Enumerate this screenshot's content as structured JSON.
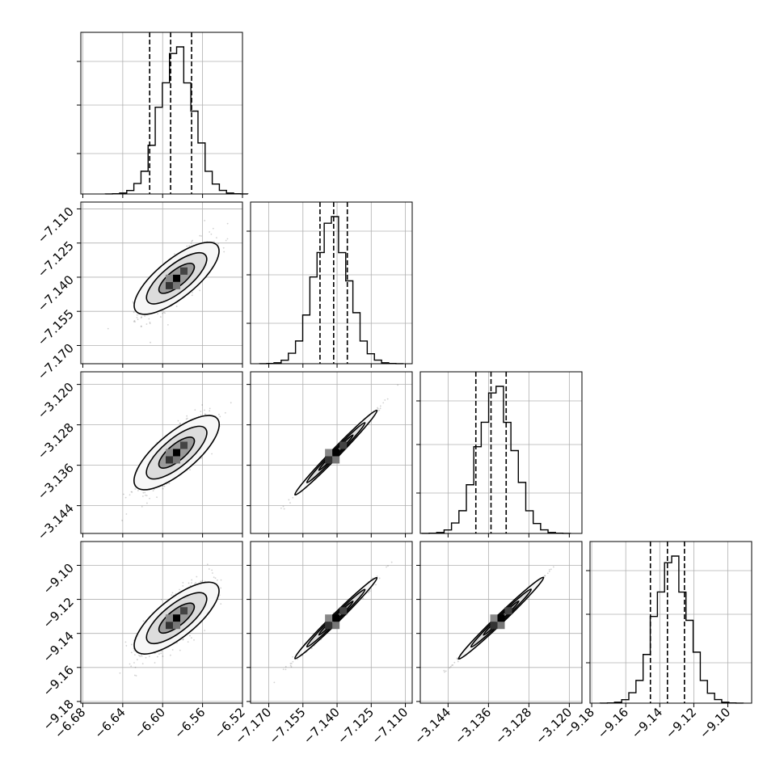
{
  "chart_data": {
    "type": "corner",
    "params": [
      {
        "ticks": [
          "−6.68",
          "−6.64",
          "−6.60",
          "−6.56",
          "−6.52"
        ],
        "tickvals": [
          -6.68,
          -6.64,
          -6.6,
          -6.56,
          -6.52
        ],
        "range": [
          -6.682,
          -6.52
        ],
        "quantiles": [
          -6.613,
          -6.592,
          -6.571
        ],
        "mode": -6.586,
        "sd": 0.017
      },
      {
        "ticks": [
          "−7.170",
          "−7.155",
          "−7.140",
          "−7.125",
          "−7.110"
        ],
        "tickvals": [
          -7.17,
          -7.155,
          -7.14,
          -7.125,
          -7.11
        ],
        "range": [
          -7.178,
          -7.107
        ],
        "quantiles": [
          -7.1475,
          -7.1415,
          -7.1355
        ],
        "mode": -7.1425,
        "sd": 0.0075
      },
      {
        "ticks": [
          "−3.144",
          "−3.136",
          "−3.128",
          "−3.120"
        ],
        "tickvals": [
          -3.144,
          -3.136,
          -3.128,
          -3.12
        ],
        "range": [
          -3.1495,
          -3.1175
        ],
        "quantiles": [
          -3.1385,
          -3.1355,
          -3.1325
        ],
        "mode": -3.1345,
        "sd": 0.0035
      },
      {
        "ticks": [
          "−9.18",
          "−9.16",
          "−9.14",
          "−9.12",
          "−9.10"
        ],
        "tickvals": [
          -9.18,
          -9.16,
          -9.14,
          -9.12,
          -9.1
        ],
        "range": [
          -9.181,
          -9.086
        ],
        "quantiles": [
          -9.1455,
          -9.1355,
          -9.1255
        ],
        "mode": -9.133,
        "sd": 0.01
      }
    ],
    "density_peaks": [
      {
        "row": 1,
        "col": 0,
        "x": -6.586,
        "y": -7.1405
      },
      {
        "row": 2,
        "col": 0,
        "x": -6.586,
        "y": -3.1335
      },
      {
        "row": 2,
        "col": 1,
        "x": -7.1405,
        "y": -3.1335
      },
      {
        "row": 3,
        "col": 0,
        "x": -6.586,
        "y": -9.131
      },
      {
        "row": 3,
        "col": 1,
        "x": -7.1405,
        "y": -9.131
      },
      {
        "row": 3,
        "col": 2,
        "x": -3.1335,
        "y": -9.131
      }
    ],
    "correlations": {
      "1-0": 0.8,
      "2-0": 0.8,
      "2-1": 0.995,
      "3-0": 0.8,
      "3-1": 0.99,
      "3-2": 0.998
    },
    "histogram_bins": 20,
    "grid": true
  }
}
